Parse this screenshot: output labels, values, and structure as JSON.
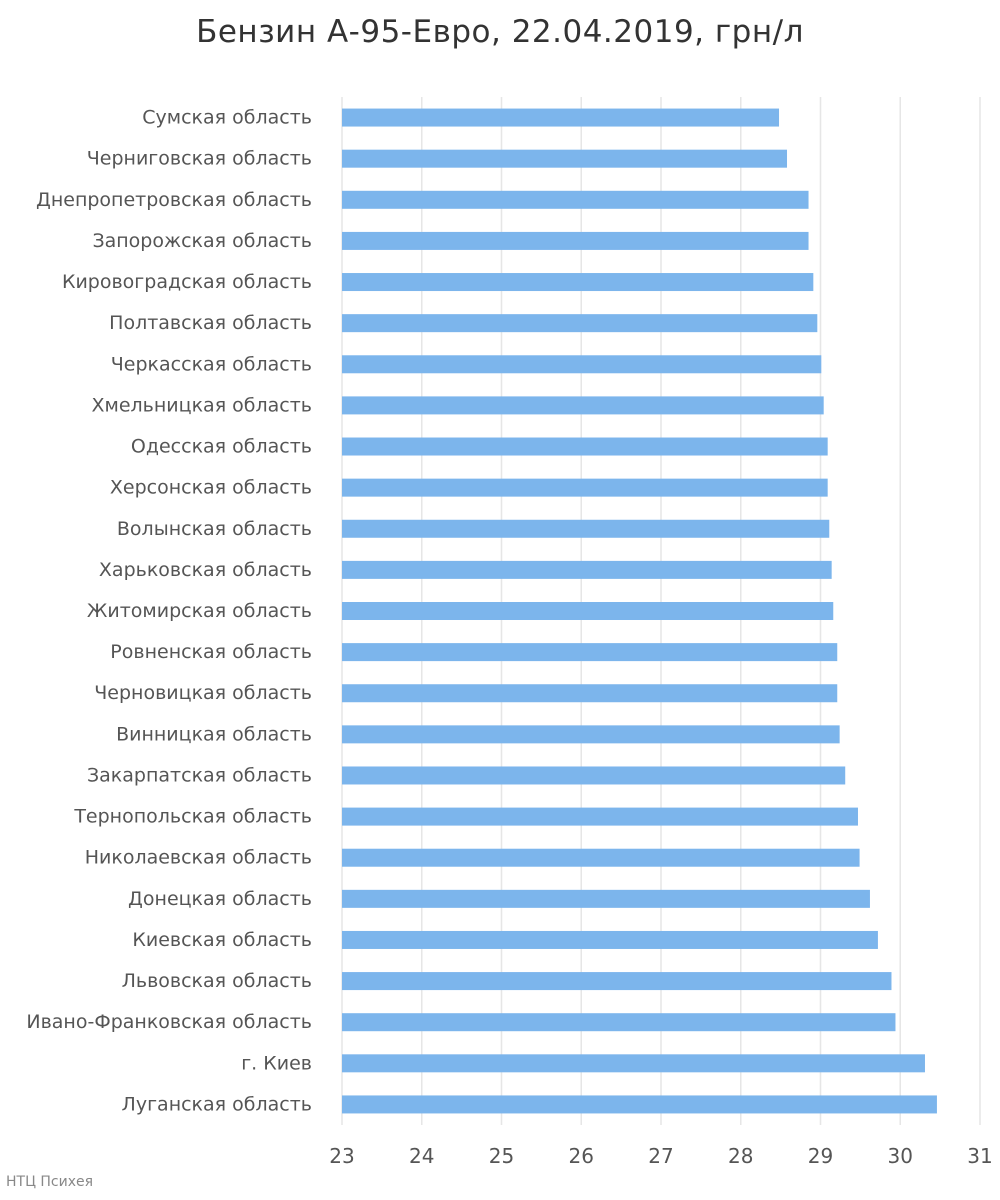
{
  "chart_data": {
    "type": "bar",
    "orientation": "horizontal",
    "title": "Бензин А-95-Евро, 22.04.2019, грн/л",
    "categories": [
      "Сумская область",
      "Черниговская область",
      "Днепропетровская область",
      "Запорожская область",
      "Кировоградская область",
      "Полтавская область",
      "Черкасская область",
      "Хмельницкая область",
      "Одесская область",
      "Херсонская область",
      "Волынская область",
      "Харьковская область",
      "Житомирская область",
      "Ровненская область",
      "Черновицкая область",
      "Винницкая область",
      "Закарпатская область",
      "Тернопольская область",
      "Николаевская область",
      "Донецкая область",
      "Киевская область",
      "Львовская область",
      "Ивано-Франковская область",
      "г. Киев",
      "Луганская область"
    ],
    "values": [
      28.48,
      28.58,
      28.85,
      28.85,
      28.91,
      28.96,
      29.01,
      29.04,
      29.09,
      29.09,
      29.11,
      29.14,
      29.16,
      29.21,
      29.21,
      29.24,
      29.31,
      29.47,
      29.49,
      29.62,
      29.72,
      29.89,
      29.94,
      30.31,
      30.46
    ],
    "xlim": [
      23,
      31
    ],
    "xticks": [
      23,
      24,
      25,
      26,
      27,
      28,
      29,
      30,
      31
    ],
    "grid": true,
    "legend": "none",
    "colors": {
      "bar": "#7cb5ec",
      "grid": "#e6e6e6"
    }
  },
  "credit": "НТЦ Психея"
}
